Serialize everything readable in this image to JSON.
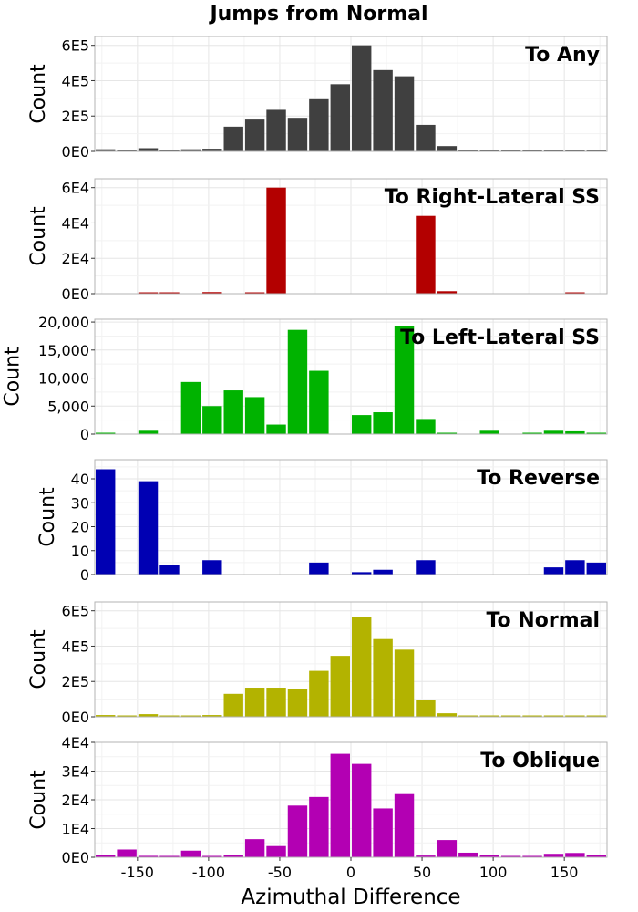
{
  "chart_data": {
    "type": "bar",
    "title": "Jumps from Normal",
    "xlabel": "Azimuthal Difference",
    "ylabel": "Count",
    "xlim": [
      -180,
      180
    ],
    "bin_width": 15,
    "grid": true,
    "x": [
      -172.5,
      -157.5,
      -142.5,
      -127.5,
      -112.5,
      -97.5,
      -82.5,
      -67.5,
      -52.5,
      -37.5,
      -22.5,
      -7.5,
      7.5,
      22.5,
      37.5,
      52.5,
      67.5,
      82.5,
      97.5,
      112.5,
      127.5,
      142.5,
      157.5,
      172.5
    ],
    "x_ticks": [
      -150,
      -100,
      -50,
      0,
      50,
      100,
      150
    ],
    "x_tick_labels": [
      "-150",
      "-100",
      "-50",
      "0",
      "50",
      "100",
      "150"
    ],
    "panels": [
      {
        "name": "To Any",
        "color": "#404040",
        "ylim": [
          0,
          650000
        ],
        "y_ticks": [
          0,
          200000,
          400000,
          600000
        ],
        "y_tick_labels": [
          "0E0",
          "2E5",
          "4E5",
          "6E5"
        ],
        "values": [
          12000,
          8000,
          18000,
          3000,
          12000,
          15000,
          140000,
          180000,
          235000,
          190000,
          295000,
          380000,
          600000,
          460000,
          425000,
          150000,
          30000,
          3000,
          4000,
          1000,
          2000,
          4000,
          5000,
          4000
        ]
      },
      {
        "name": "To Right-Lateral SS",
        "color": "#b30000",
        "ylim": [
          0,
          65000
        ],
        "y_ticks": [
          0,
          20000,
          40000,
          60000
        ],
        "y_tick_labels": [
          "0E0",
          "2E4",
          "4E4",
          "6E4"
        ],
        "values": [
          0,
          0,
          300,
          400,
          0,
          900,
          0,
          600,
          60000,
          0,
          0,
          0,
          0,
          0,
          0,
          44000,
          1400,
          0,
          0,
          0,
          0,
          0,
          300,
          0
        ]
      },
      {
        "name": "To Left-Lateral SS",
        "color": "#00b300",
        "ylim": [
          0,
          20500
        ],
        "y_ticks": [
          0,
          5000,
          10000,
          15000,
          20000
        ],
        "y_tick_labels": [
          "0",
          "5,000",
          "10,000",
          "15,000",
          "20,000"
        ],
        "values": [
          200,
          0,
          600,
          0,
          9300,
          5000,
          7800,
          6600,
          1700,
          18600,
          11300,
          0,
          3400,
          3900,
          19200,
          2700,
          100,
          0,
          600,
          0,
          200,
          600,
          500,
          100
        ]
      },
      {
        "name": "To Reverse",
        "color": "#0000b3",
        "ylim": [
          0,
          48
        ],
        "y_ticks": [
          0,
          10,
          20,
          30,
          40
        ],
        "y_tick_labels": [
          "0",
          "10",
          "20",
          "30",
          "40"
        ],
        "values": [
          44,
          0,
          39,
          4,
          0,
          6,
          0,
          0,
          0,
          0,
          5,
          0,
          1,
          2,
          0,
          6,
          0,
          0,
          0,
          0,
          0,
          3,
          6,
          5
        ]
      },
      {
        "name": "To Normal",
        "color": "#b3b300",
        "ylim": [
          0,
          650000
        ],
        "y_ticks": [
          0,
          200000,
          400000,
          600000
        ],
        "y_tick_labels": [
          "0E0",
          "2E5",
          "4E5",
          "6E5"
        ],
        "values": [
          10000,
          3000,
          15000,
          2000,
          3000,
          10000,
          130000,
          165000,
          165000,
          155000,
          260000,
          345000,
          565000,
          440000,
          380000,
          95000,
          20000,
          1000,
          5000,
          1000,
          2000,
          3000,
          5000,
          4000
        ]
      },
      {
        "name": "To Oblique",
        "color": "#b300b3",
        "ylim": [
          0,
          40000
        ],
        "y_ticks": [
          0,
          10000,
          20000,
          30000,
          40000
        ],
        "y_tick_labels": [
          "0E0",
          "1E4",
          "2E4",
          "3E4",
          "4E4"
        ],
        "values": [
          800,
          2700,
          500,
          400,
          2300,
          200,
          800,
          6300,
          3900,
          18000,
          21000,
          36000,
          32500,
          17000,
          22000,
          600,
          6000,
          1600,
          800,
          400,
          400,
          1200,
          1500,
          900
        ]
      }
    ]
  }
}
